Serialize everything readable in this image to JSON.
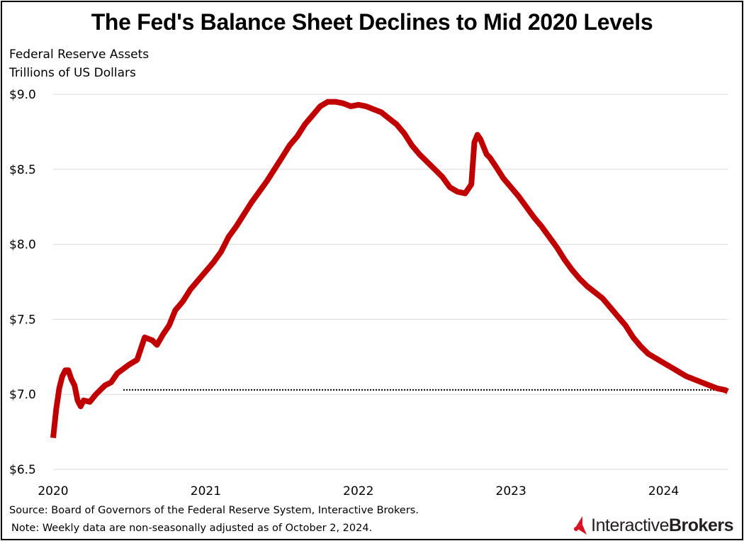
{
  "chart_data": {
    "type": "line",
    "title": "The Fed's Balance Sheet Declines to Mid 2020 Levels",
    "subtitle": [
      "Federal Reserve Assets",
      "Trillions of US Dollars"
    ],
    "y_tick_labels": [
      "$9.0",
      "$8.5",
      "$8.0",
      "$7.5",
      "$7.0",
      "$6.5"
    ],
    "y_ticks": [
      9.0,
      8.5,
      8.0,
      7.5,
      7.0,
      6.5
    ],
    "x_tick_labels": [
      "2020",
      "2021",
      "2022",
      "2023",
      "2024"
    ],
    "x_ticks": [
      2020,
      2021,
      2022,
      2023,
      2024
    ],
    "ylim": [
      6.5,
      9.0
    ],
    "xlim": [
      2020.0,
      2024.42
    ],
    "grid": true,
    "series": [
      {
        "color": "#c00000",
        "x": [
          2020.0,
          2020.02,
          2020.04,
          2020.06,
          2020.08,
          2020.1,
          2020.12,
          2020.14,
          2020.16,
          2020.18,
          2020.2,
          2020.24,
          2020.28,
          2020.3,
          2020.34,
          2020.38,
          2020.42,
          2020.46,
          2020.5,
          2020.55,
          2020.6,
          2020.65,
          2020.68,
          2020.72,
          2020.76,
          2020.8,
          2020.85,
          2020.9,
          2020.95,
          2021.0,
          2021.05,
          2021.1,
          2021.15,
          2021.2,
          2021.25,
          2021.3,
          2021.35,
          2021.4,
          2021.45,
          2021.5,
          2021.55,
          2021.6,
          2021.65,
          2021.7,
          2021.75,
          2021.8,
          2021.85,
          2021.9,
          2021.95,
          2022.0,
          2022.05,
          2022.1,
          2022.15,
          2022.2,
          2022.25,
          2022.3,
          2022.35,
          2022.4,
          2022.45,
          2022.5,
          2022.55,
          2022.6,
          2022.65,
          2022.7,
          2022.74,
          2022.76,
          2022.78,
          2022.8,
          2022.82,
          2022.84,
          2022.86,
          2022.9,
          2022.95,
          2023.0,
          2023.05,
          2023.1,
          2023.15,
          2023.2,
          2023.25,
          2023.3,
          2023.35,
          2023.4,
          2023.45,
          2023.5,
          2023.55,
          2023.6,
          2023.65,
          2023.7,
          2023.75,
          2023.8,
          2023.85,
          2023.9,
          2023.95,
          2024.0,
          2024.05,
          2024.1,
          2024.15,
          2024.2,
          2024.25,
          2024.3,
          2024.35,
          2024.4,
          2024.42
        ],
        "values": [
          6.71,
          6.9,
          7.04,
          7.12,
          7.16,
          7.16,
          7.1,
          7.06,
          6.96,
          6.92,
          6.96,
          6.95,
          7.0,
          7.02,
          7.06,
          7.08,
          7.14,
          7.17,
          7.2,
          7.23,
          7.38,
          7.36,
          7.33,
          7.4,
          7.46,
          7.56,
          7.62,
          7.7,
          7.76,
          7.82,
          7.88,
          7.95,
          8.05,
          8.12,
          8.2,
          8.28,
          8.35,
          8.42,
          8.5,
          8.58,
          8.66,
          8.72,
          8.8,
          8.86,
          8.92,
          8.95,
          8.95,
          8.94,
          8.92,
          8.93,
          8.92,
          8.9,
          8.88,
          8.84,
          8.8,
          8.74,
          8.66,
          8.6,
          8.55,
          8.5,
          8.45,
          8.38,
          8.35,
          8.34,
          8.4,
          8.68,
          8.73,
          8.7,
          8.65,
          8.6,
          8.58,
          8.52,
          8.44,
          8.38,
          8.32,
          8.25,
          8.18,
          8.12,
          8.05,
          7.98,
          7.9,
          7.83,
          7.77,
          7.72,
          7.68,
          7.64,
          7.58,
          7.52,
          7.46,
          7.38,
          7.32,
          7.27,
          7.24,
          7.21,
          7.18,
          7.15,
          7.12,
          7.1,
          7.08,
          7.06,
          7.04,
          7.03,
          7.02
        ]
      }
    ],
    "reference_line": {
      "y": 7.03,
      "x_start": 2020.46,
      "x_end": 2024.42,
      "style": "dotted",
      "color": "#000000"
    },
    "notes": [
      "Source: Board of Governors of the Federal Reserve System, Interactive Brokers.",
      "Note: Weekly data are non-seasonally adjusted as of October 2, 2024."
    ]
  },
  "logo": {
    "text_regular": "Interactive",
    "text_bold": "Brokers",
    "accent_color": "#d81222"
  }
}
